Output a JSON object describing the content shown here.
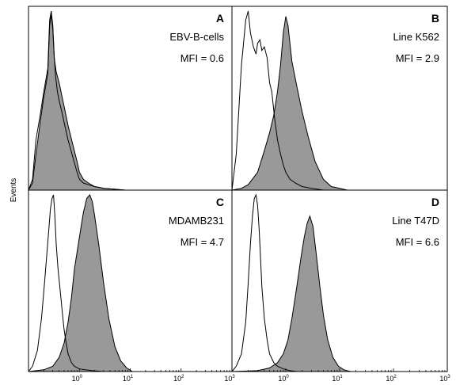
{
  "figure": {
    "ylabel": "Events"
  },
  "chart_data": [
    {
      "type": "area",
      "panel": "A",
      "sample": "EBV-B-cells",
      "mfi_text": "MFI = 0.6",
      "x_scale": "log",
      "x_range": [
        0.1,
        1000
      ],
      "x_ticks": [
        "10",
        "10",
        "10",
        "10"
      ],
      "x_tick_exponents": [
        "0",
        "1",
        "2",
        "3"
      ],
      "series": [
        {
          "fill": "none",
          "x": [
            0.1,
            0.12,
            0.14,
            0.17,
            0.2,
            0.24,
            0.26,
            0.28,
            0.3,
            0.32,
            0.34,
            0.37,
            0.4,
            0.45,
            0.5,
            0.6,
            0.75,
            0.9,
            1.0,
            1.2,
            1.5,
            2.0,
            3.0,
            5.0,
            8.0
          ],
          "values": [
            0,
            6,
            28,
            42,
            55,
            68,
            95,
            100,
            92,
            75,
            64,
            55,
            50,
            44,
            38,
            28,
            18,
            10,
            6,
            4,
            3,
            2,
            1,
            0.5,
            0
          ]
        },
        {
          "fill": "#999999",
          "x": [
            0.1,
            0.12,
            0.14,
            0.17,
            0.2,
            0.24,
            0.26,
            0.28,
            0.3,
            0.32,
            0.35,
            0.4,
            0.45,
            0.5,
            0.6,
            0.75,
            0.9,
            1.0,
            1.2,
            1.5,
            2.0,
            3.0,
            5.0,
            8.0
          ],
          "values": [
            0,
            4,
            20,
            38,
            52,
            65,
            92,
            98,
            90,
            74,
            66,
            60,
            53,
            47,
            36,
            25,
            16,
            10,
            6,
            4,
            2,
            1,
            0.5,
            0
          ]
        }
      ]
    },
    {
      "type": "area",
      "panel": "B",
      "sample": "Line K562",
      "mfi_text": "MFI = 2.9",
      "x_scale": "log",
      "x_range": [
        0.1,
        1000
      ],
      "x_ticks": [
        "10",
        "10",
        "10",
        "10"
      ],
      "x_tick_exponents": [
        "0",
        "1",
        "2",
        "3"
      ],
      "series": [
        {
          "fill": "none",
          "x": [
            0.1,
            0.12,
            0.15,
            0.18,
            0.2,
            0.22,
            0.25,
            0.28,
            0.3,
            0.33,
            0.36,
            0.4,
            0.45,
            0.5,
            0.55,
            0.62,
            0.7,
            0.8,
            0.9,
            1.0,
            1.2,
            1.5,
            2.0,
            3.0,
            5.0
          ],
          "values": [
            0,
            20,
            70,
            95,
            100,
            88,
            80,
            76,
            82,
            84,
            78,
            80,
            74,
            60,
            55,
            40,
            28,
            20,
            14,
            10,
            6,
            4,
            2,
            1,
            0
          ]
        },
        {
          "fill": "#999999",
          "x": [
            0.1,
            0.15,
            0.2,
            0.3,
            0.4,
            0.5,
            0.6,
            0.7,
            0.8,
            0.9,
            1.0,
            1.1,
            1.3,
            1.6,
            2.0,
            2.6,
            3.5,
            5.0,
            7.0,
            10.0,
            14.0
          ],
          "values": [
            0,
            1,
            3,
            10,
            22,
            32,
            42,
            55,
            70,
            88,
            97,
            92,
            72,
            58,
            44,
            30,
            16,
            6,
            2,
            1,
            0
          ]
        }
      ]
    },
    {
      "type": "area",
      "panel": "C",
      "sample": "MDAMB231",
      "mfi_text": "MFI = 4.7",
      "x_scale": "log",
      "x_range": [
        0.1,
        1000
      ],
      "x_ticks": [
        "10",
        "10",
        "10",
        "10"
      ],
      "x_tick_exponents": [
        "0",
        "1",
        "2",
        "3"
      ],
      "series": [
        {
          "fill": "none",
          "x": [
            0.1,
            0.12,
            0.15,
            0.18,
            0.2,
            0.22,
            0.25,
            0.27,
            0.29,
            0.31,
            0.33,
            0.35,
            0.38,
            0.42,
            0.46,
            0.5,
            0.55,
            0.6,
            0.7,
            0.8,
            1.0,
            1.3,
            1.8,
            3.0
          ],
          "values": [
            0,
            3,
            12,
            30,
            45,
            60,
            80,
            92,
            98,
            100,
            88,
            72,
            58,
            46,
            34,
            24,
            16,
            10,
            5,
            3,
            1.5,
            1,
            0.5,
            0
          ]
        },
        {
          "fill": "#999999",
          "x": [
            0.1,
            0.2,
            0.3,
            0.4,
            0.5,
            0.6,
            0.7,
            0.8,
            1.0,
            1.2,
            1.4,
            1.6,
            1.8,
            2.0,
            2.4,
            3.0,
            3.8,
            5.0,
            6.5,
            8.5,
            11.0
          ],
          "values": [
            0,
            1,
            3,
            8,
            16,
            28,
            42,
            58,
            76,
            90,
            98,
            100,
            96,
            88,
            72,
            50,
            30,
            14,
            6,
            2,
            0
          ]
        }
      ]
    },
    {
      "type": "area",
      "panel": "D",
      "sample": "Line T47D",
      "mfi_text": "MFI = 6.6",
      "x_scale": "log",
      "x_range": [
        0.1,
        1000
      ],
      "x_ticks": [
        "10",
        "10",
        "10",
        "10"
      ],
      "x_tick_exponents": [
        "0",
        "1",
        "2",
        "3"
      ],
      "series": [
        {
          "fill": "none",
          "x": [
            0.1,
            0.12,
            0.15,
            0.18,
            0.2,
            0.22,
            0.24,
            0.26,
            0.28,
            0.3,
            0.32,
            0.34,
            0.36,
            0.4,
            0.45,
            0.5,
            0.6,
            0.7,
            0.9,
            1.2,
            1.6
          ],
          "values": [
            0,
            3,
            10,
            28,
            50,
            72,
            88,
            98,
            100,
            94,
            80,
            64,
            48,
            30,
            18,
            10,
            5,
            3,
            1.5,
            0.5,
            0
          ]
        },
        {
          "fill": "#999999",
          "x": [
            0.1,
            0.3,
            0.5,
            0.7,
            0.9,
            1.1,
            1.3,
            1.6,
            1.9,
            2.2,
            2.5,
            2.8,
            3.2,
            3.7,
            4.3,
            5.0,
            6.0,
            7.5,
            9.5,
            12.0,
            16.0
          ],
          "values": [
            0,
            0.5,
            2,
            5,
            10,
            18,
            30,
            48,
            64,
            76,
            84,
            88,
            82,
            66,
            48,
            32,
            18,
            8,
            3,
            1,
            0
          ]
        }
      ]
    }
  ]
}
